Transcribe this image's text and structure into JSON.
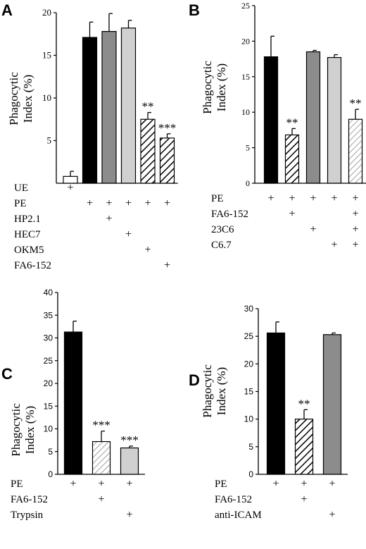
{
  "chart_data": [
    {
      "panel": "A",
      "type": "bar",
      "ylabel": [
        "Phagocytic",
        "Index (%)"
      ],
      "ylim": [
        0,
        20
      ],
      "yticks": [
        5,
        10,
        15,
        20
      ],
      "bars": [
        {
          "value": 0.8,
          "err": 0.6,
          "fill": "white",
          "sig": ""
        },
        {
          "value": 17.1,
          "err": 1.8,
          "fill": "black",
          "sig": ""
        },
        {
          "value": 17.8,
          "err": 2.1,
          "fill": "gray",
          "sig": ""
        },
        {
          "value": 18.2,
          "err": 0.9,
          "fill": "lightgray",
          "sig": ""
        },
        {
          "value": 7.5,
          "err": 0.8,
          "fill": "hatch",
          "sig": "**"
        },
        {
          "value": 5.3,
          "err": 0.5,
          "fill": "hatch",
          "sig": "***"
        }
      ],
      "rows": [
        {
          "label": "UE",
          "marks": [
            1,
            0,
            0,
            0,
            0,
            0
          ]
        },
        {
          "label": "PE",
          "marks": [
            0,
            1,
            1,
            1,
            1,
            1
          ]
        },
        {
          "label": "HP2.1",
          "marks": [
            0,
            0,
            1,
            0,
            0,
            0
          ]
        },
        {
          "label": "HEC7",
          "marks": [
            0,
            0,
            0,
            1,
            0,
            0
          ]
        },
        {
          "label": "OKM5",
          "marks": [
            0,
            0,
            0,
            0,
            1,
            0
          ]
        },
        {
          "label": "FA6-152",
          "marks": [
            0,
            0,
            0,
            0,
            0,
            1
          ]
        }
      ]
    },
    {
      "panel": "B",
      "type": "bar",
      "ylabel": [
        "Phagocytic",
        "Index (%)"
      ],
      "ylim": [
        0,
        25
      ],
      "yticks": [
        0,
        5,
        10,
        15,
        20,
        25
      ],
      "bars": [
        {
          "value": 17.8,
          "err": 2.9,
          "fill": "black",
          "sig": ""
        },
        {
          "value": 6.8,
          "err": 0.9,
          "fill": "hatch",
          "sig": "**"
        },
        {
          "value": 18.5,
          "err": 0.2,
          "fill": "gray",
          "sig": ""
        },
        {
          "value": 17.7,
          "err": 0.4,
          "fill": "lightgray",
          "sig": ""
        },
        {
          "value": 9.0,
          "err": 1.4,
          "fill": "hatchlight",
          "sig": "**"
        }
      ],
      "rows": [
        {
          "label": "PE",
          "marks": [
            1,
            1,
            1,
            1,
            1
          ]
        },
        {
          "label": "FA6-152",
          "marks": [
            0,
            1,
            0,
            0,
            1
          ]
        },
        {
          "label": "23C6",
          "marks": [
            0,
            0,
            1,
            0,
            1
          ]
        },
        {
          "label": "C6.7",
          "marks": [
            0,
            0,
            0,
            1,
            1
          ]
        }
      ]
    },
    {
      "panel": "C",
      "type": "bar",
      "ylabel": [
        "Phagocytic",
        "Index (%)"
      ],
      "ylim": [
        0,
        40
      ],
      "yticks": [
        0,
        5,
        10,
        15,
        20,
        25,
        30,
        35,
        40
      ],
      "bars": [
        {
          "value": 31.3,
          "err": 2.4,
          "fill": "black",
          "sig": ""
        },
        {
          "value": 7.2,
          "err": 2.3,
          "fill": "hatchlight",
          "sig": "***"
        },
        {
          "value": 5.8,
          "err": 0.4,
          "fill": "lightgray",
          "sig": "***"
        }
      ],
      "rows": [
        {
          "label": "PE",
          "marks": [
            1,
            1,
            1
          ]
        },
        {
          "label": "FA6-152",
          "marks": [
            0,
            1,
            0
          ]
        },
        {
          "label": "Trypsin",
          "marks": [
            0,
            0,
            1
          ]
        }
      ]
    },
    {
      "panel": "D",
      "type": "bar",
      "ylabel": [
        "Phagocytic",
        "Index (%)"
      ],
      "ylim": [
        0,
        30
      ],
      "yticks": [
        0,
        5,
        10,
        15,
        20,
        25,
        30
      ],
      "bars": [
        {
          "value": 25.6,
          "err": 2.0,
          "fill": "black",
          "sig": ""
        },
        {
          "value": 10.0,
          "err": 1.7,
          "fill": "hatch",
          "sig": "**"
        },
        {
          "value": 25.3,
          "err": 0.3,
          "fill": "gray",
          "sig": ""
        }
      ],
      "rows": [
        {
          "label": "PE",
          "marks": [
            1,
            1,
            1
          ]
        },
        {
          "label": "FA6-152",
          "marks": [
            0,
            1,
            0
          ]
        },
        {
          "label": "anti-ICAM",
          "marks": [
            0,
            0,
            1
          ]
        }
      ]
    }
  ],
  "mark_symbol": "+"
}
